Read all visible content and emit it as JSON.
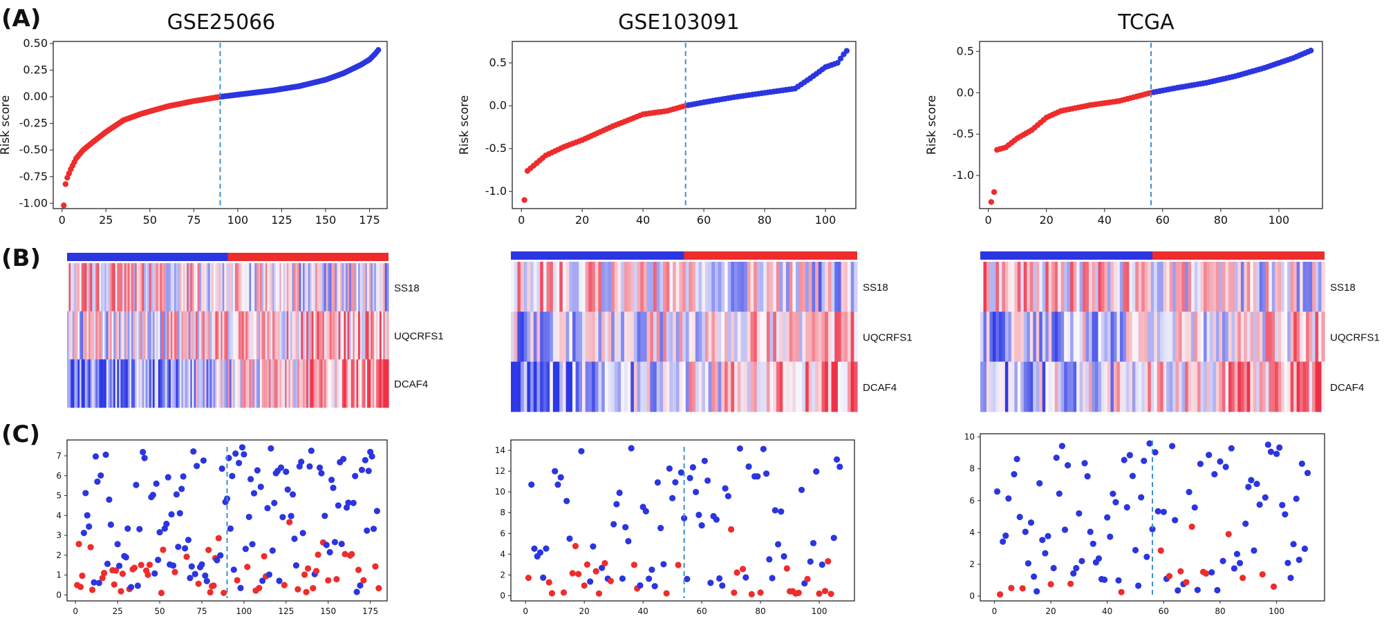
{
  "panel_labels": [
    "(A)",
    "(B)",
    "(C)"
  ],
  "colors": {
    "high": "#ee2c2c",
    "low": "#2b35e0",
    "cutoff": "#3b8fd1",
    "grid_frame": "#222222"
  },
  "chart_data": [
    {
      "id": "gse25066",
      "title": "GSE25066",
      "n_samples": 180,
      "cutoff_index": 90,
      "risk_plot": {
        "type": "scatter",
        "ylabel": "Risk score",
        "xlim": [
          -5,
          185
        ],
        "ylim": [
          -1.05,
          0.52
        ],
        "xticks": [
          0,
          25,
          50,
          75,
          100,
          125,
          150,
          175
        ],
        "yticks": [
          -1.0,
          -0.75,
          -0.5,
          -0.25,
          0.0,
          0.25,
          0.5
        ],
        "ytick_labels": [
          "-1.00",
          "-0.75",
          "-0.50",
          "-0.25",
          "0.00",
          "0.25",
          "0.50"
        ],
        "curve_points": [
          [
            1,
            -1.02
          ],
          [
            2,
            -0.82
          ],
          [
            3,
            -0.76
          ],
          [
            5,
            -0.68
          ],
          [
            8,
            -0.58
          ],
          [
            12,
            -0.5
          ],
          [
            18,
            -0.42
          ],
          [
            25,
            -0.33
          ],
          [
            35,
            -0.22
          ],
          [
            45,
            -0.16
          ],
          [
            60,
            -0.09
          ],
          [
            75,
            -0.04
          ],
          [
            90,
            0.0
          ],
          [
            105,
            0.03
          ],
          [
            120,
            0.06
          ],
          [
            135,
            0.1
          ],
          [
            150,
            0.16
          ],
          [
            160,
            0.22
          ],
          [
            170,
            0.3
          ],
          [
            175,
            0.35
          ],
          [
            178,
            0.4
          ],
          [
            180,
            0.44
          ]
        ]
      },
      "heatmap": {
        "type": "heatmap",
        "genes": [
          "SS18",
          "UQCRFS1",
          "DCAF4"
        ],
        "group_bar": [
          "low",
          "high"
        ],
        "trend": [
          [
            0.3,
            -0.2
          ],
          [
            -0.1,
            0.4
          ],
          [
            -0.9,
            0.7
          ]
        ]
      },
      "status_plot": {
        "type": "scatter",
        "xlim": [
          -5,
          185
        ],
        "ylim": [
          -0.3,
          7.8
        ],
        "xticks": [
          0,
          25,
          50,
          75,
          100,
          125,
          150,
          175
        ],
        "yticks": [
          0,
          1,
          2,
          3,
          4,
          5,
          6,
          7
        ],
        "seed": 11,
        "ymax_low": 7.4,
        "red_fraction": 0.35
      }
    },
    {
      "id": "gse103091",
      "title": "GSE103091",
      "n_samples": 107,
      "cutoff_index": 54,
      "risk_plot": {
        "type": "scatter",
        "ylabel": "Risk score",
        "xlim": [
          -3,
          110
        ],
        "ylim": [
          -1.2,
          0.75
        ],
        "xticks": [
          0,
          20,
          40,
          60,
          80,
          100
        ],
        "yticks": [
          -1.0,
          -0.5,
          0.0,
          0.5
        ],
        "ytick_labels": [
          "-1.0",
          "-0.5",
          "0.0",
          "0.5"
        ],
        "curve_points": [
          [
            1,
            -1.1
          ],
          [
            2,
            -0.76
          ],
          [
            4,
            -0.7
          ],
          [
            8,
            -0.58
          ],
          [
            14,
            -0.48
          ],
          [
            20,
            -0.4
          ],
          [
            30,
            -0.24
          ],
          [
            40,
            -0.1
          ],
          [
            48,
            -0.06
          ],
          [
            54,
            0.0
          ],
          [
            60,
            0.04
          ],
          [
            70,
            0.1
          ],
          [
            80,
            0.15
          ],
          [
            90,
            0.2
          ],
          [
            95,
            0.32
          ],
          [
            100,
            0.45
          ],
          [
            104,
            0.5
          ],
          [
            106,
            0.6
          ],
          [
            107,
            0.64
          ]
        ]
      },
      "heatmap": {
        "type": "heatmap",
        "genes": [
          "SS18",
          "UQCRFS1",
          "DCAF4"
        ],
        "group_bar": [
          "low",
          "high"
        ],
        "trend": [
          [
            0.3,
            -0.2
          ],
          [
            -0.3,
            0.3
          ],
          [
            -0.7,
            0.6
          ]
        ]
      },
      "status_plot": {
        "type": "scatter",
        "xlim": [
          -5,
          112
        ],
        "ylim": [
          -0.5,
          15
        ],
        "xticks": [
          0,
          20,
          40,
          60,
          80,
          100
        ],
        "yticks": [
          0,
          2,
          4,
          6,
          8,
          10,
          12,
          14
        ],
        "seed": 23,
        "ymax_low": 14.2,
        "red_fraction": 0.3
      }
    },
    {
      "id": "tcga",
      "title": "TCGA",
      "n_samples": 111,
      "cutoff_index": 56,
      "risk_plot": {
        "type": "scatter",
        "ylabel": "Risk score",
        "xlim": [
          -3,
          115
        ],
        "ylim": [
          -1.4,
          0.62
        ],
        "xticks": [
          0,
          20,
          40,
          60,
          80,
          100
        ],
        "yticks": [
          -1.0,
          -0.5,
          0.0,
          0.5
        ],
        "ytick_labels": [
          "-1.0",
          "-0.5",
          "0.0",
          "0.5"
        ],
        "curve_points": [
          [
            1,
            -1.32
          ],
          [
            2,
            -1.2
          ],
          [
            3,
            -0.69
          ],
          [
            6,
            -0.66
          ],
          [
            10,
            -0.55
          ],
          [
            15,
            -0.45
          ],
          [
            20,
            -0.3
          ],
          [
            25,
            -0.22
          ],
          [
            35,
            -0.15
          ],
          [
            45,
            -0.1
          ],
          [
            56,
            0.0
          ],
          [
            65,
            0.06
          ],
          [
            75,
            0.12
          ],
          [
            85,
            0.2
          ],
          [
            95,
            0.3
          ],
          [
            105,
            0.42
          ],
          [
            109,
            0.48
          ],
          [
            111,
            0.51
          ]
        ]
      },
      "heatmap": {
        "type": "heatmap",
        "genes": [
          "SS18",
          "UQCRFS1",
          "DCAF4"
        ],
        "group_bar": [
          "low",
          "high"
        ],
        "trend": [
          [
            0.3,
            -0.1
          ],
          [
            -0.4,
            0.3
          ],
          [
            -0.5,
            0.6
          ]
        ]
      },
      "status_plot": {
        "type": "scatter",
        "xlim": [
          -5,
          117
        ],
        "ylim": [
          -0.3,
          10.2
        ],
        "xticks": [
          0,
          20,
          40,
          60,
          80,
          100
        ],
        "yticks": [
          0,
          2,
          4,
          6,
          8,
          10
        ],
        "seed": 37,
        "ymax_low": 9.6,
        "red_fraction": 0.2
      }
    }
  ]
}
